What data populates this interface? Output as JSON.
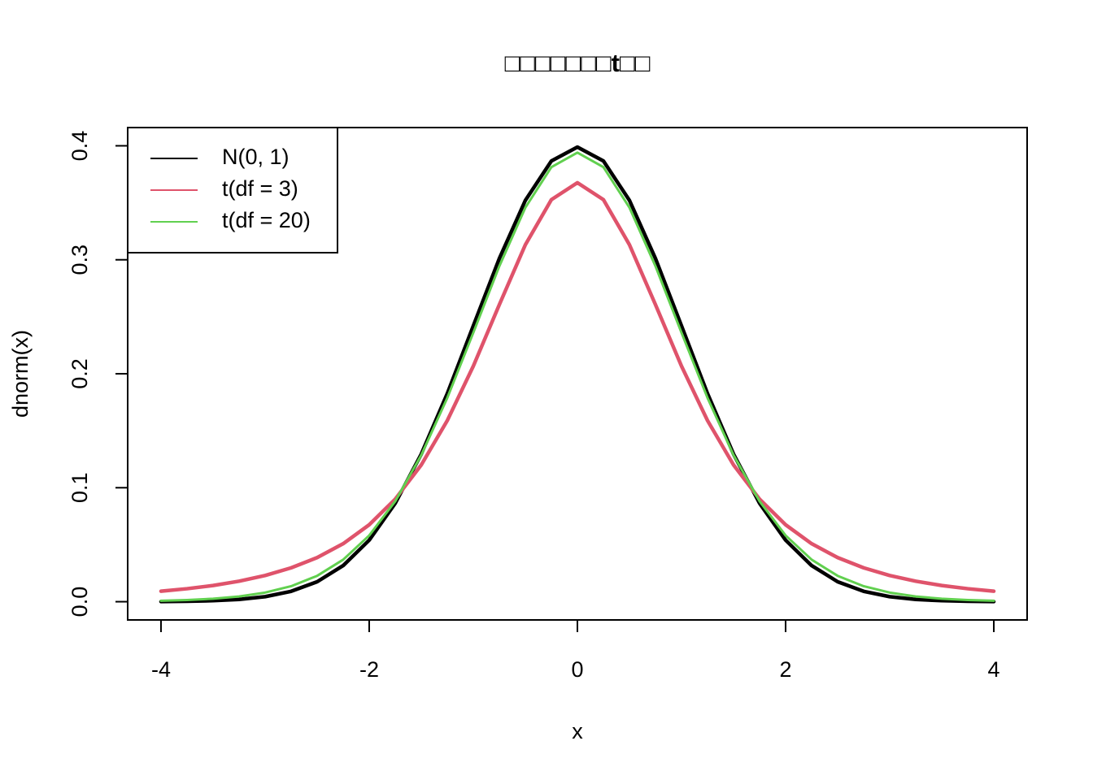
{
  "chart_data": {
    "type": "line",
    "title": "□□□□□□□t□□",
    "x_label": "x",
    "y_label": "dnorm(x)",
    "x": [
      -4,
      -3.75,
      -3.5,
      -3.25,
      -3,
      -2.75,
      -2.5,
      -2.25,
      -2,
      -1.75,
      -1.5,
      -1.25,
      -1,
      -0.75,
      -0.5,
      -0.25,
      0,
      0.25,
      0.5,
      0.75,
      1,
      1.25,
      1.5,
      1.75,
      2,
      2.25,
      2.5,
      2.75,
      3,
      3.25,
      3.5,
      3.75,
      4
    ],
    "series": [
      {
        "name": "N(0, 1)",
        "color": "#000000",
        "width": 4.5,
        "values": [
          0.0001,
          0.0004,
          0.0009,
          0.002,
          0.0044,
          0.0091,
          0.0175,
          0.0317,
          0.054,
          0.0863,
          0.1295,
          0.1826,
          0.242,
          0.3011,
          0.3521,
          0.3867,
          0.3989,
          0.3867,
          0.3521,
          0.3011,
          0.242,
          0.1826,
          0.1295,
          0.0863,
          0.054,
          0.0317,
          0.0175,
          0.0091,
          0.0044,
          0.002,
          0.0009,
          0.0004,
          0.0001
        ]
      },
      {
        "name": "t(df = 3)",
        "color": "#DF536B",
        "width": 4.5,
        "values": [
          0.0092,
          0.0114,
          0.0142,
          0.018,
          0.023,
          0.0297,
          0.0387,
          0.0509,
          0.0675,
          0.09,
          0.12,
          0.1589,
          0.2067,
          0.2606,
          0.3132,
          0.3527,
          0.3676,
          0.3527,
          0.3132,
          0.2606,
          0.2067,
          0.1589,
          0.12,
          0.09,
          0.0675,
          0.0509,
          0.0387,
          0.0297,
          0.023,
          0.018,
          0.0142,
          0.0114,
          0.0092
        ]
      },
      {
        "name": "t(df = 20)",
        "color": "#61D04F",
        "width": 3,
        "values": [
          0.0008,
          0.0015,
          0.0026,
          0.0046,
          0.008,
          0.0136,
          0.0227,
          0.0369,
          0.0581,
          0.0881,
          0.1286,
          0.1788,
          0.236,
          0.2944,
          0.3458,
          0.3813,
          0.394,
          0.3813,
          0.3458,
          0.2944,
          0.236,
          0.1788,
          0.1286,
          0.0881,
          0.0581,
          0.0369,
          0.0227,
          0.0136,
          0.008,
          0.0046,
          0.0026,
          0.0015,
          0.0008
        ]
      }
    ],
    "xlim": [
      -4.32,
      4.32
    ],
    "ylim": [
      -0.016,
      0.416
    ],
    "xticks": [
      -4,
      -2,
      0,
      2,
      4
    ],
    "yticks": [
      {
        "value": 0,
        "label": "0.0"
      },
      0.1,
      0.2,
      0.3,
      0.4
    ],
    "legend": "top-left"
  }
}
